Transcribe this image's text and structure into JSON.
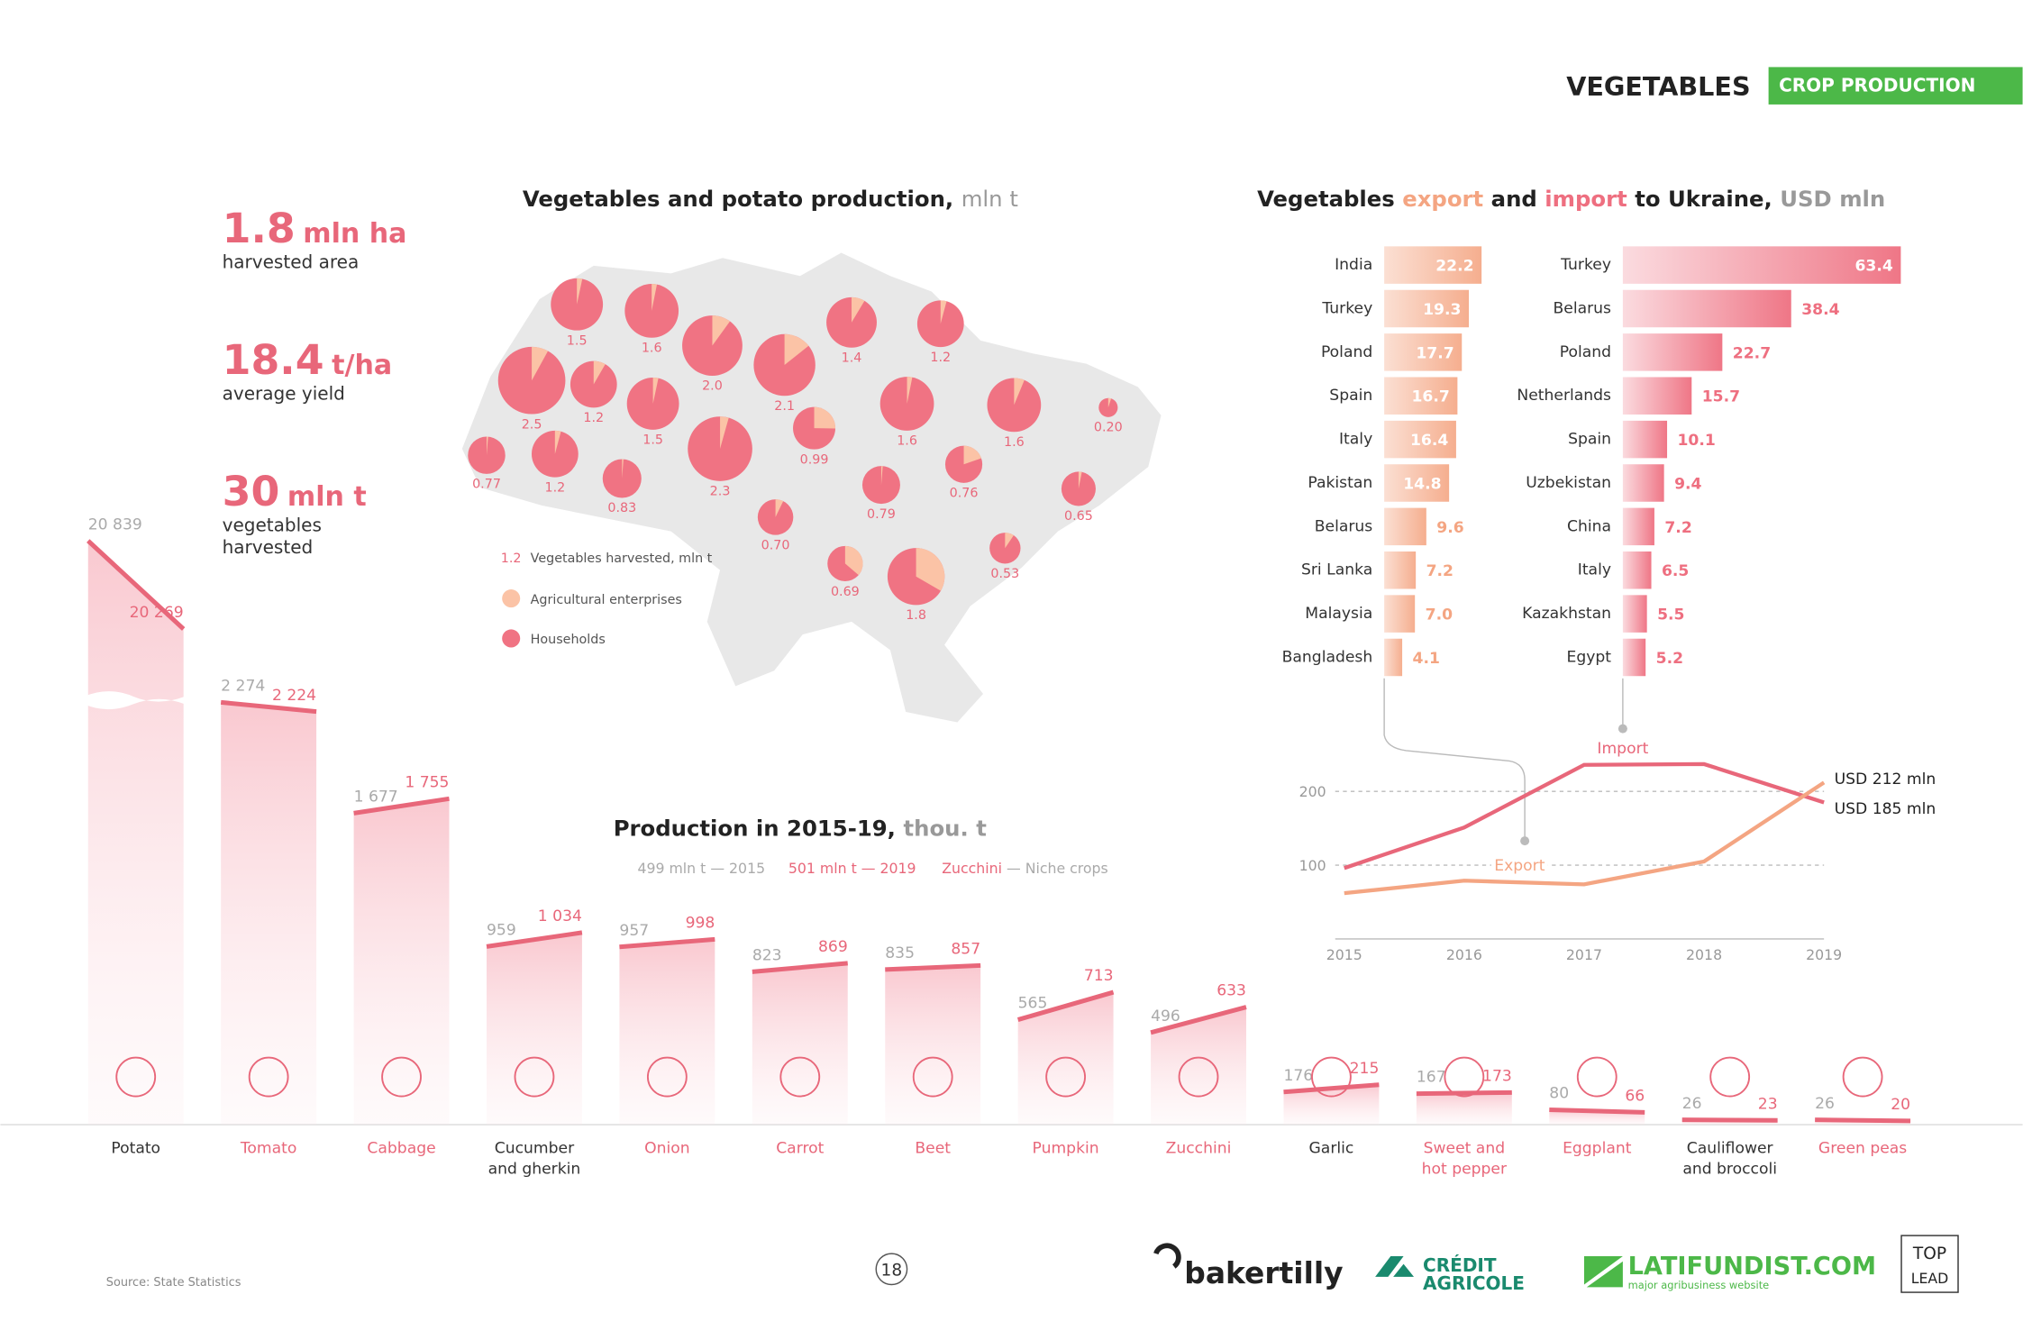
{
  "header": {
    "title": "VEGETABLES",
    "section": "CROP PRODUCTION"
  },
  "stats": [
    {
      "value": "1.8",
      "unit": "mln ha",
      "label_lines": [
        "harvested area"
      ]
    },
    {
      "value": "18.4",
      "unit": "t/ha",
      "label_lines": [
        "average yield"
      ]
    },
    {
      "value": "30",
      "unit": "mln t",
      "label_lines": [
        "vegetables",
        "harvested"
      ]
    }
  ],
  "chart_data": [
    {
      "type": "pie-map",
      "title": "Vegetables and potato production,",
      "units": "mln t",
      "values": [
        1.5,
        1.6,
        2.0,
        2.1,
        1.4,
        1.2,
        2.5,
        1.2,
        1.5,
        0.99,
        1.6,
        1.6,
        0.2,
        0.77,
        1.2,
        0.83,
        2.3,
        0.79,
        0.76,
        0.65,
        0.7,
        0.69,
        1.8,
        0.53
      ],
      "value_labels": [
        "1.5",
        "1.6",
        "2.0",
        "2.1",
        "1.4",
        "1.2",
        "2.5",
        "1.2",
        "1.5",
        "0.99",
        "1.6",
        "1.6",
        "0.20",
        "0.77",
        "1.2",
        "0.83",
        "2.3",
        "0.79",
        "0.76",
        "0.65",
        "0.70",
        "0.69",
        "1.8",
        "0.53"
      ],
      "series": [
        {
          "name": "Agricultural enterprises",
          "color": "#fbc3a6",
          "values": [
            0.05,
            0.05,
            0.2,
            0.3,
            0.12,
            0.05,
            0.2,
            0.1,
            0.05,
            0.25,
            0.05,
            0.1,
            0.01,
            0.01,
            0.05,
            0.01,
            0.1,
            0.01,
            0.15,
            0.02,
            0.05,
            0.25,
            0.6,
            0.05
          ]
        },
        {
          "name": "Households",
          "color": "#f07383"
        }
      ],
      "legend_sample": "1.2",
      "legend_text": "Vegetables harvested, mln t"
    },
    {
      "type": "hbar",
      "title_parts": [
        "Vegetables ",
        "export",
        " and ",
        "import",
        " to Ukraine, ",
        "USD mln"
      ],
      "categories": [
        "India",
        "Turkey",
        "Poland",
        "Spain",
        "Italy",
        "Pakistan",
        "Belarus",
        "Sri Lanka",
        "Malaysia",
        "Bangladesh"
      ],
      "values": [
        22.2,
        19.3,
        17.7,
        16.7,
        16.4,
        14.8,
        9.6,
        7.2,
        7.0,
        4.1
      ],
      "value_labels": [
        "22.2",
        "19.3",
        "17.7",
        "16.7",
        "16.4",
        "14.8",
        "9.6",
        "7.2",
        "7.0",
        "4.1"
      ],
      "color": "#f4a582"
    },
    {
      "type": "hbar",
      "categories": [
        "Turkey",
        "Belarus",
        "Poland",
        "Netherlands",
        "Spain",
        "Uzbekistan",
        "China",
        "Italy",
        "Kazakhstan",
        "Egypt"
      ],
      "values": [
        63.4,
        38.4,
        22.7,
        15.7,
        10.1,
        9.4,
        7.2,
        6.5,
        5.5,
        5.2
      ],
      "color": "#ee6f80"
    },
    {
      "type": "line",
      "categories": [
        "2015",
        "2016",
        "2017",
        "2018",
        "2019"
      ],
      "ylim": [
        0,
        250
      ],
      "yticks": [
        100,
        200
      ],
      "series": [
        {
          "name": "Import",
          "color": "#e8677a",
          "values": [
            96,
            151,
            236,
            237,
            185
          ]
        },
        {
          "name": "Export",
          "color": "#f4a582",
          "values": [
            62,
            79,
            74,
            105,
            212
          ]
        }
      ],
      "annotations": [
        "USD 212 mln",
        "USD 185 mln"
      ]
    },
    {
      "type": "area-columns",
      "title": "Production in 2015-19,",
      "units": "thou. t",
      "categories": [
        "Potato",
        "Tomato",
        "Cabbage",
        "Cucumber and gherkin",
        "Onion",
        "Carrot",
        "Beet",
        "Pumpkin",
        "Zucchini",
        "Garlic",
        "Sweet and hot pepper",
        "Eggplant",
        "Cauliflower and broccoli",
        "Green peas"
      ],
      "highlight": [
        false,
        true,
        true,
        false,
        true,
        true,
        true,
        true,
        true,
        false,
        true,
        true,
        false,
        true
      ],
      "series": [
        {
          "name": "499 mln t — 2015",
          "color": "#aaaaaa",
          "values": [
            20839,
            2274,
            1677,
            959,
            957,
            823,
            835,
            565,
            496,
            176,
            167,
            80,
            26,
            26
          ],
          "value_labels": [
            "20 839",
            "2 274",
            "1 677",
            "959",
            "957",
            "823",
            "835",
            "565",
            "496",
            "176",
            "167",
            "80",
            "26",
            "26"
          ]
        },
        {
          "name": "501 mln t — 2019",
          "color": "#e8677a",
          "values": [
            20269,
            2224,
            1755,
            1034,
            998,
            869,
            857,
            713,
            633,
            215,
            173,
            66,
            23,
            20
          ],
          "value_labels": [
            "20 269",
            "2 224",
            "1 755",
            "1 034",
            "998",
            "869",
            "857",
            "713",
            "633",
            "215",
            "173",
            "66",
            "23",
            "20"
          ]
        }
      ],
      "niche_label": "Zucchini",
      "niche_text": " — Niche crops"
    }
  ],
  "footer": {
    "source": "Source: State Statistics",
    "page": "18",
    "logos": [
      "bakertilly",
      "CRÉDIT",
      "AGRICOLE",
      "LATIFUNDIST.COM",
      "major agribusiness website",
      "TOP",
      "LEAD"
    ]
  }
}
